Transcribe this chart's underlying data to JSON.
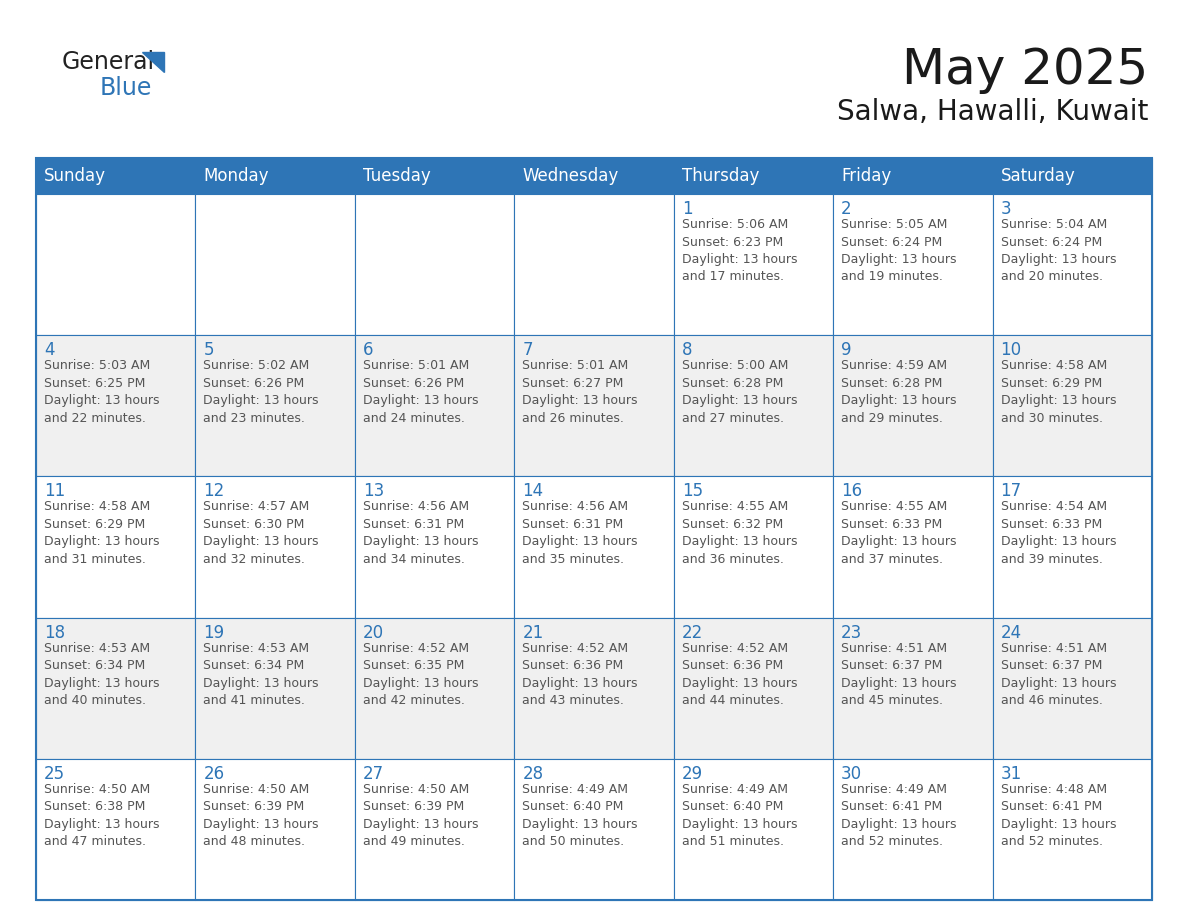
{
  "title": "May 2025",
  "subtitle": "Salwa, Hawalli, Kuwait",
  "header_bg": "#2E75B6",
  "header_text": "#FFFFFF",
  "cell_bg_white": "#FFFFFF",
  "cell_bg_gray": "#F0F0F0",
  "day_number_color": "#2E75B6",
  "text_color": "#555555",
  "border_color": "#2E75B6",
  "days_of_week": [
    "Sunday",
    "Monday",
    "Tuesday",
    "Wednesday",
    "Thursday",
    "Friday",
    "Saturday"
  ],
  "weeks": [
    [
      {
        "day": null,
        "info": null
      },
      {
        "day": null,
        "info": null
      },
      {
        "day": null,
        "info": null
      },
      {
        "day": null,
        "info": null
      },
      {
        "day": 1,
        "info": "Sunrise: 5:06 AM\nSunset: 6:23 PM\nDaylight: 13 hours\nand 17 minutes."
      },
      {
        "day": 2,
        "info": "Sunrise: 5:05 AM\nSunset: 6:24 PM\nDaylight: 13 hours\nand 19 minutes."
      },
      {
        "day": 3,
        "info": "Sunrise: 5:04 AM\nSunset: 6:24 PM\nDaylight: 13 hours\nand 20 minutes."
      }
    ],
    [
      {
        "day": 4,
        "info": "Sunrise: 5:03 AM\nSunset: 6:25 PM\nDaylight: 13 hours\nand 22 minutes."
      },
      {
        "day": 5,
        "info": "Sunrise: 5:02 AM\nSunset: 6:26 PM\nDaylight: 13 hours\nand 23 minutes."
      },
      {
        "day": 6,
        "info": "Sunrise: 5:01 AM\nSunset: 6:26 PM\nDaylight: 13 hours\nand 24 minutes."
      },
      {
        "day": 7,
        "info": "Sunrise: 5:01 AM\nSunset: 6:27 PM\nDaylight: 13 hours\nand 26 minutes."
      },
      {
        "day": 8,
        "info": "Sunrise: 5:00 AM\nSunset: 6:28 PM\nDaylight: 13 hours\nand 27 minutes."
      },
      {
        "day": 9,
        "info": "Sunrise: 4:59 AM\nSunset: 6:28 PM\nDaylight: 13 hours\nand 29 minutes."
      },
      {
        "day": 10,
        "info": "Sunrise: 4:58 AM\nSunset: 6:29 PM\nDaylight: 13 hours\nand 30 minutes."
      }
    ],
    [
      {
        "day": 11,
        "info": "Sunrise: 4:58 AM\nSunset: 6:29 PM\nDaylight: 13 hours\nand 31 minutes."
      },
      {
        "day": 12,
        "info": "Sunrise: 4:57 AM\nSunset: 6:30 PM\nDaylight: 13 hours\nand 32 minutes."
      },
      {
        "day": 13,
        "info": "Sunrise: 4:56 AM\nSunset: 6:31 PM\nDaylight: 13 hours\nand 34 minutes."
      },
      {
        "day": 14,
        "info": "Sunrise: 4:56 AM\nSunset: 6:31 PM\nDaylight: 13 hours\nand 35 minutes."
      },
      {
        "day": 15,
        "info": "Sunrise: 4:55 AM\nSunset: 6:32 PM\nDaylight: 13 hours\nand 36 minutes."
      },
      {
        "day": 16,
        "info": "Sunrise: 4:55 AM\nSunset: 6:33 PM\nDaylight: 13 hours\nand 37 minutes."
      },
      {
        "day": 17,
        "info": "Sunrise: 4:54 AM\nSunset: 6:33 PM\nDaylight: 13 hours\nand 39 minutes."
      }
    ],
    [
      {
        "day": 18,
        "info": "Sunrise: 4:53 AM\nSunset: 6:34 PM\nDaylight: 13 hours\nand 40 minutes."
      },
      {
        "day": 19,
        "info": "Sunrise: 4:53 AM\nSunset: 6:34 PM\nDaylight: 13 hours\nand 41 minutes."
      },
      {
        "day": 20,
        "info": "Sunrise: 4:52 AM\nSunset: 6:35 PM\nDaylight: 13 hours\nand 42 minutes."
      },
      {
        "day": 21,
        "info": "Sunrise: 4:52 AM\nSunset: 6:36 PM\nDaylight: 13 hours\nand 43 minutes."
      },
      {
        "day": 22,
        "info": "Sunrise: 4:52 AM\nSunset: 6:36 PM\nDaylight: 13 hours\nand 44 minutes."
      },
      {
        "day": 23,
        "info": "Sunrise: 4:51 AM\nSunset: 6:37 PM\nDaylight: 13 hours\nand 45 minutes."
      },
      {
        "day": 24,
        "info": "Sunrise: 4:51 AM\nSunset: 6:37 PM\nDaylight: 13 hours\nand 46 minutes."
      }
    ],
    [
      {
        "day": 25,
        "info": "Sunrise: 4:50 AM\nSunset: 6:38 PM\nDaylight: 13 hours\nand 47 minutes."
      },
      {
        "day": 26,
        "info": "Sunrise: 4:50 AM\nSunset: 6:39 PM\nDaylight: 13 hours\nand 48 minutes."
      },
      {
        "day": 27,
        "info": "Sunrise: 4:50 AM\nSunset: 6:39 PM\nDaylight: 13 hours\nand 49 minutes."
      },
      {
        "day": 28,
        "info": "Sunrise: 4:49 AM\nSunset: 6:40 PM\nDaylight: 13 hours\nand 50 minutes."
      },
      {
        "day": 29,
        "info": "Sunrise: 4:49 AM\nSunset: 6:40 PM\nDaylight: 13 hours\nand 51 minutes."
      },
      {
        "day": 30,
        "info": "Sunrise: 4:49 AM\nSunset: 6:41 PM\nDaylight: 13 hours\nand 52 minutes."
      },
      {
        "day": 31,
        "info": "Sunrise: 4:48 AM\nSunset: 6:41 PM\nDaylight: 13 hours\nand 52 minutes."
      }
    ]
  ],
  "logo_general_color": "#222222",
  "logo_blue_color": "#2E75B6",
  "header_fontsize": 12,
  "day_num_fontsize": 12,
  "info_fontsize": 9,
  "title_fontsize": 36,
  "subtitle_fontsize": 20,
  "logo_fontsize": 17
}
